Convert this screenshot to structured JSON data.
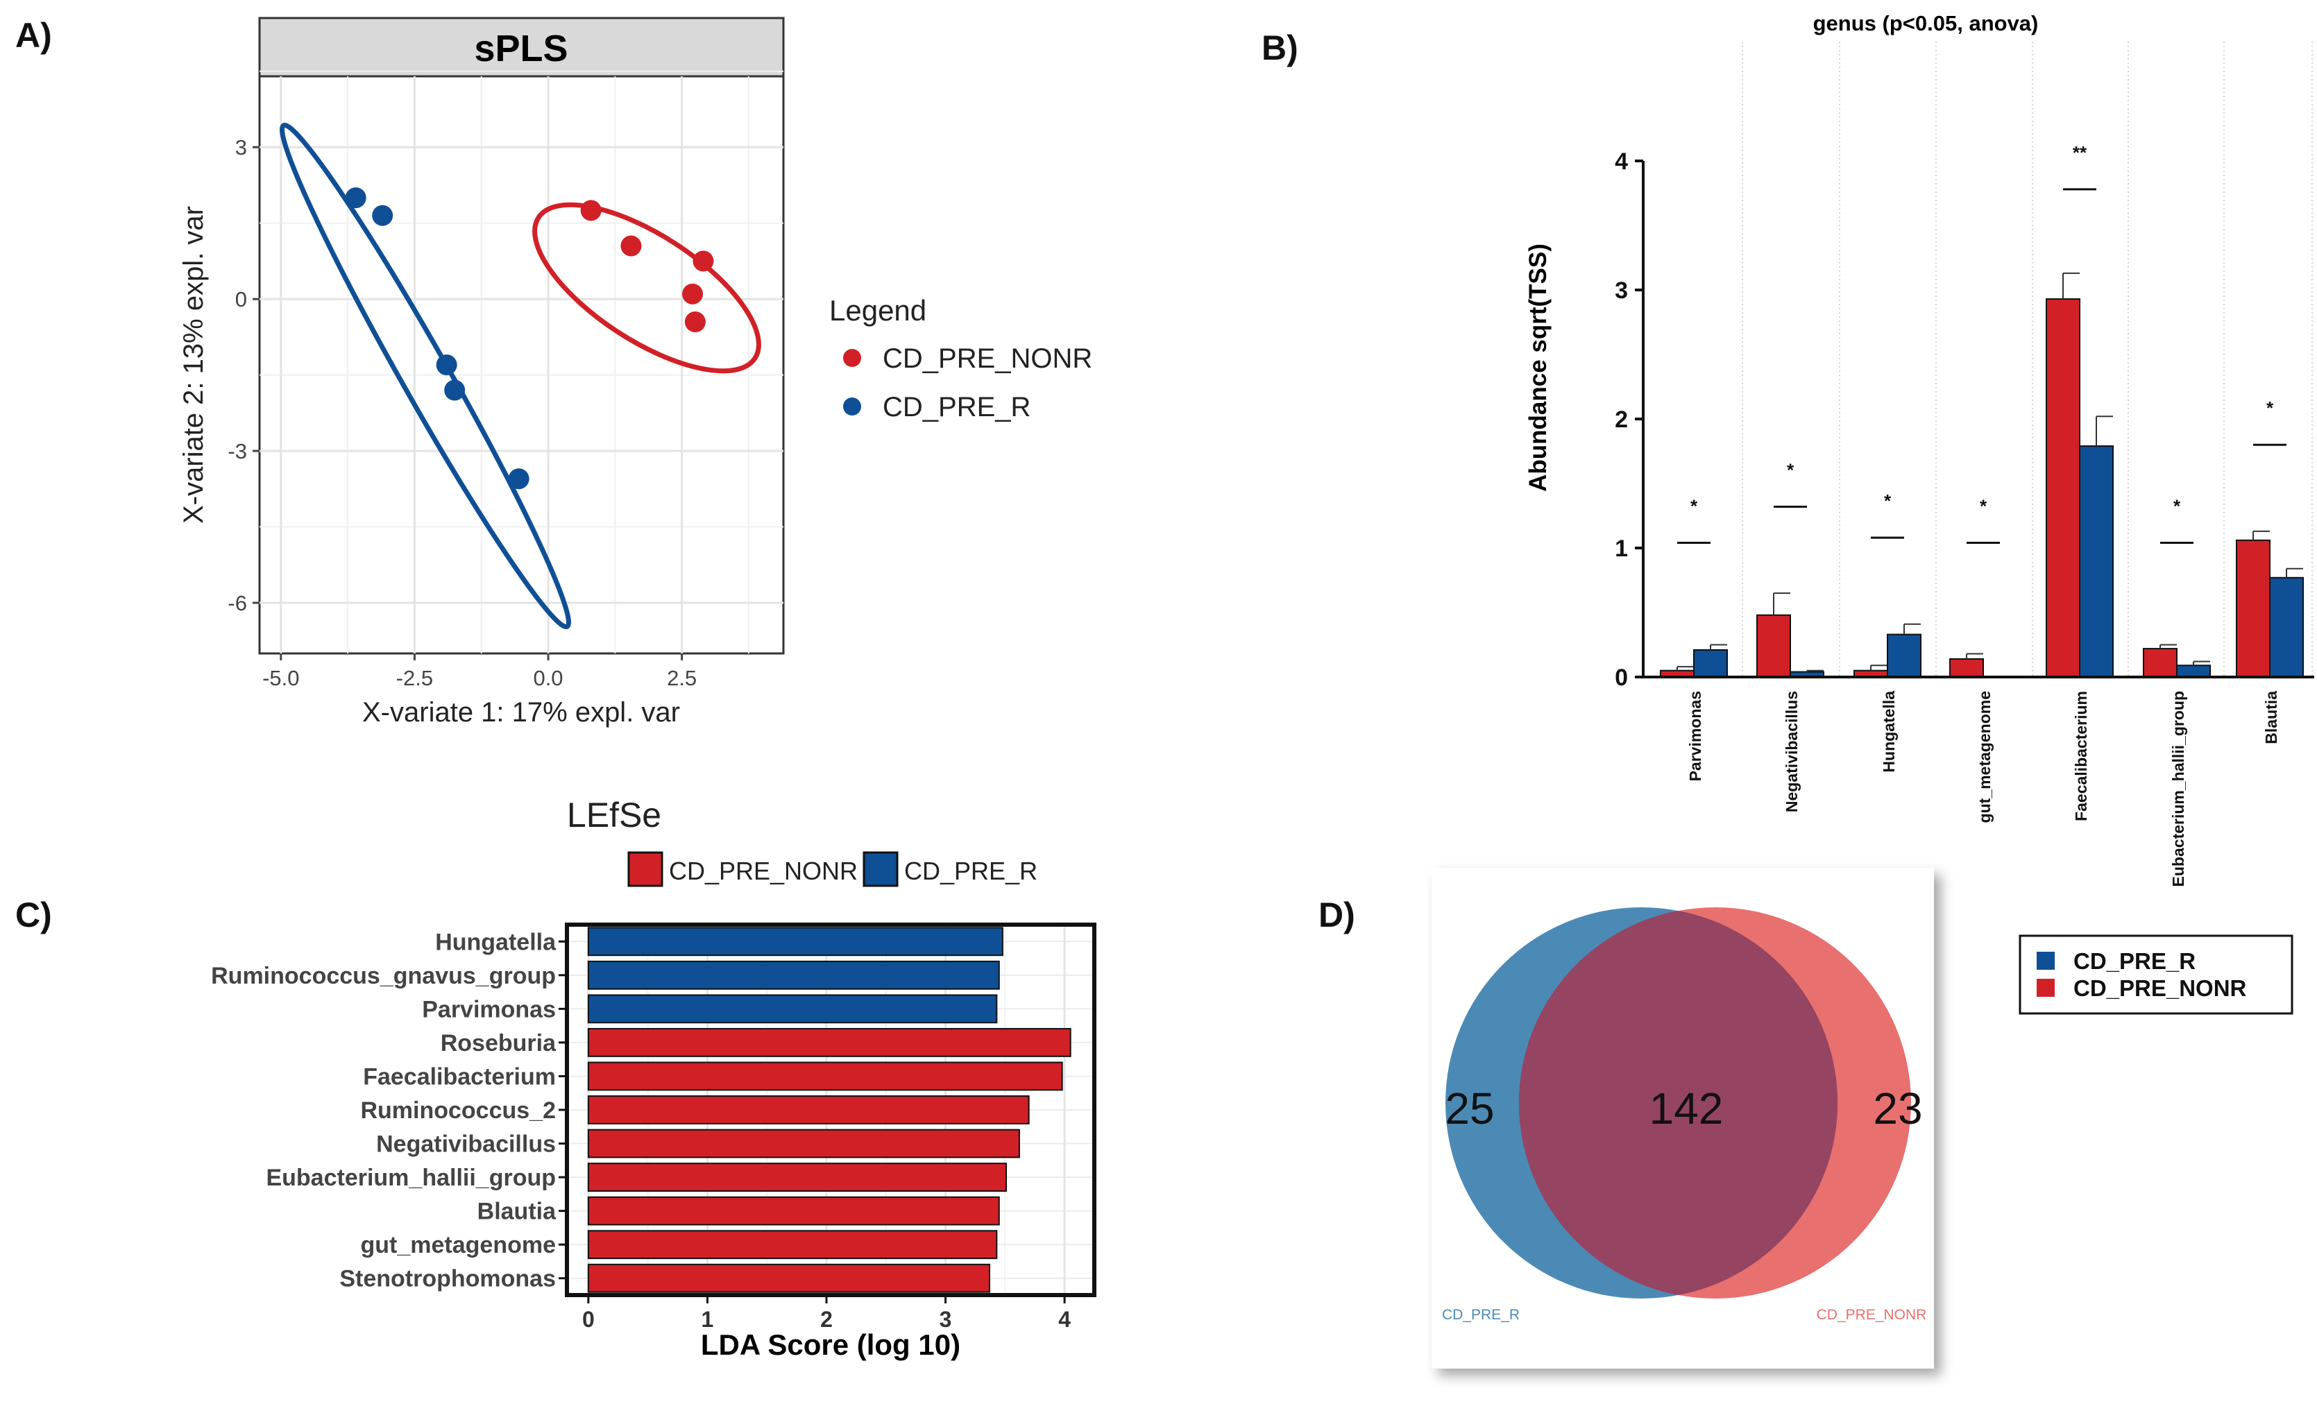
{
  "panel_labels": {
    "a": "A)",
    "b": "B)",
    "c": "C)",
    "d": "D)"
  },
  "colors": {
    "red": "#d22027",
    "blue": "#0f4f96",
    "venn_blue": "#4c8ab6",
    "venn_red": "#e8706f",
    "venn_overlap": "#954462"
  },
  "chart_data": [
    {
      "id": "spls",
      "type": "scatter",
      "title": "sPLS",
      "xlabel": "X-variate 1: 17% expl. var",
      "ylabel": "X-variate 2: 13% expl. var",
      "xlim": [
        -5.4,
        4.4
      ],
      "ylim": [
        -7.0,
        4.4
      ],
      "xticks": [
        "-5.0",
        "-2.5",
        "0.0",
        "2.5"
      ],
      "yticks": [
        "3",
        "0",
        "-3",
        "-6"
      ],
      "legend": {
        "title": "Legend",
        "entries": [
          "CD_PRE_NONR",
          "CD_PRE_R"
        ]
      },
      "series": [
        {
          "name": "CD_PRE_NONR",
          "color": "#d22027",
          "points": [
            [
              0.8,
              1.75
            ],
            [
              1.55,
              1.05
            ],
            [
              2.7,
              0.1
            ],
            [
              2.9,
              0.75
            ],
            [
              2.75,
              -0.45
            ]
          ]
        },
        {
          "name": "CD_PRE_R",
          "color": "#0f4f96",
          "points": [
            [
              -3.6,
              2.0
            ],
            [
              -3.1,
              1.65
            ],
            [
              -1.9,
              -1.3
            ],
            [
              -1.75,
              -1.8
            ],
            [
              -0.55,
              -3.55
            ]
          ]
        }
      ]
    },
    {
      "id": "anova_bars",
      "type": "bar",
      "title": "genus (p<0.05, anova)",
      "ylabel": "Abundance sqrt(TSS)",
      "ylim": [
        0,
        4
      ],
      "yticks": [
        "0",
        "1",
        "2",
        "3",
        "4"
      ],
      "categories": [
        "Parvimonas",
        "Negativibacillus",
        "Hungatella",
        "gut_metagenome",
        "Faecalibacterium",
        "Eubacterium_hallii_group",
        "Blautia"
      ],
      "series": [
        {
          "name": "CD_PRE_NONR",
          "color": "#d22027",
          "values": [
            0.05,
            0.48,
            0.05,
            0.14,
            2.93,
            0.22,
            1.06
          ],
          "errors": [
            0.03,
            0.17,
            0.04,
            0.04,
            0.2,
            0.03,
            0.07
          ]
        },
        {
          "name": "CD_PRE_R",
          "color": "#0f4f96",
          "values": [
            0.21,
            0.04,
            0.33,
            0.0,
            1.79,
            0.09,
            0.77
          ],
          "errors": [
            0.04,
            0.01,
            0.08,
            0.0,
            0.23,
            0.03,
            0.07
          ]
        }
      ],
      "significance": [
        "*",
        "*",
        "*",
        "*",
        "**",
        "*",
        "*"
      ],
      "sig_line_y": [
        1.04,
        1.32,
        1.08,
        1.04,
        3.78,
        1.04,
        1.8
      ]
    },
    {
      "id": "lefse",
      "type": "bar",
      "orientation": "horizontal",
      "title": "LEfSe",
      "xlabel": "LDA Score (log 10)",
      "xlim": [
        -0.18,
        4.25
      ],
      "xticks": [
        "0",
        "1",
        "2",
        "3",
        "4"
      ],
      "legend": [
        "CD_PRE_NONR",
        "CD_PRE_R"
      ],
      "categories": [
        "Hungatella",
        "Ruminococcus_gnavus_group",
        "Parvimonas",
        "Roseburia",
        "Faecalibacterium",
        "Ruminococcus_2",
        "Negativibacillus",
        "Eubacterium_hallii_group",
        "Blautia",
        "gut_metagenome",
        "Stenotrophomonas"
      ],
      "values": [
        3.48,
        3.45,
        3.43,
        4.05,
        3.98,
        3.7,
        3.62,
        3.51,
        3.45,
        3.43,
        3.37
      ],
      "groups": [
        "CD_PRE_R",
        "CD_PRE_R",
        "CD_PRE_R",
        "CD_PRE_NONR",
        "CD_PRE_NONR",
        "CD_PRE_NONR",
        "CD_PRE_NONR",
        "CD_PRE_NONR",
        "CD_PRE_NONR",
        "CD_PRE_NONR",
        "CD_PRE_NONR"
      ]
    },
    {
      "id": "venn",
      "type": "venn",
      "sets": [
        "CD_PRE_R",
        "CD_PRE_NONR"
      ],
      "counts": {
        "only_r": "25",
        "shared": "142",
        "only_nonr": "23"
      },
      "legend": [
        "CD_PRE_R",
        "CD_PRE_NONR"
      ]
    }
  ]
}
